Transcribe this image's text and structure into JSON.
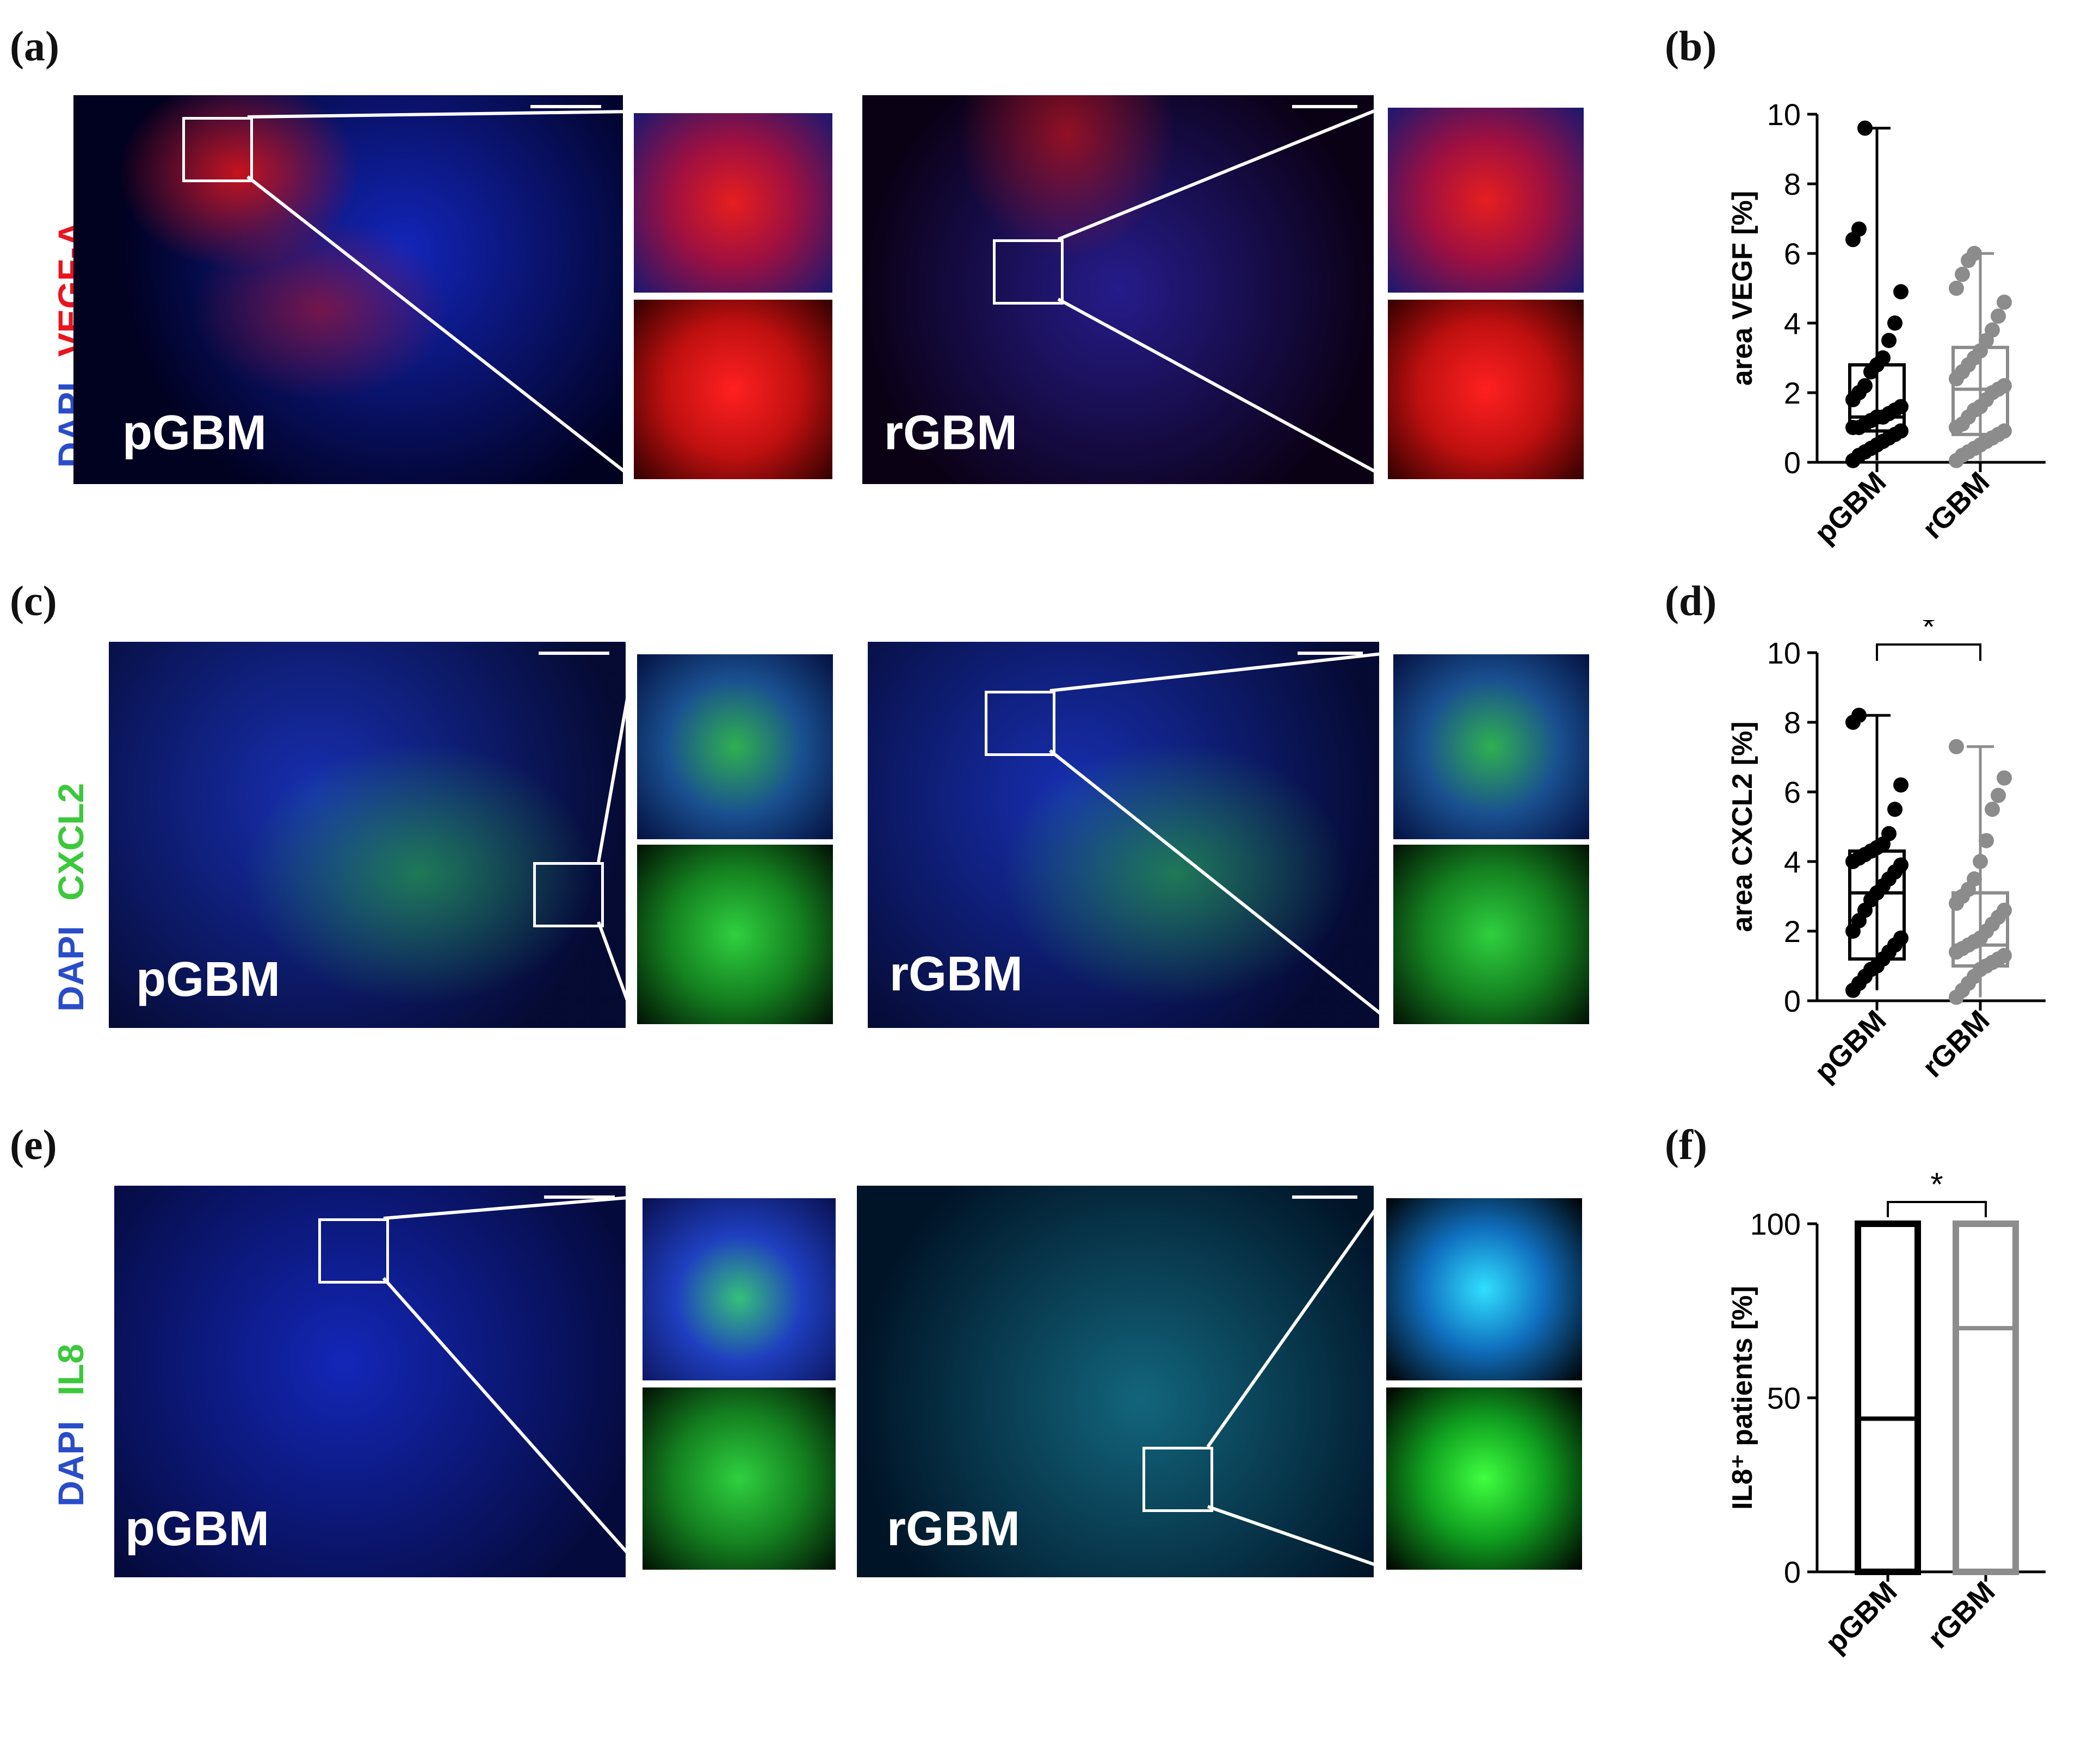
{
  "panels": {
    "a": {
      "letter": "(a)",
      "marker": "VEGF-A",
      "counterstain": "DAPI",
      "left_label": "pGBM",
      "right_label": "rGBM"
    },
    "b": {
      "letter": "(b)"
    },
    "c": {
      "letter": "(c)",
      "marker": "CXCL2",
      "counterstain": "DAPI",
      "left_label": "pGBM",
      "right_label": "rGBM"
    },
    "d": {
      "letter": "(d)"
    },
    "e": {
      "letter": "(e)",
      "marker": "IL8",
      "counterstain": "DAPI",
      "left_label": "pGBM",
      "right_label": "rGBM"
    },
    "f": {
      "letter": "(f)"
    }
  },
  "colors": {
    "vegf": "#e8141e",
    "dapi": "#2a4cc8",
    "green": "#3cc83c",
    "pgbm": "#000000",
    "rgbm": "#8c8c8c"
  },
  "chart_data": [
    {
      "type": "box",
      "panel": "b",
      "ylabel": "area VEGF [%]",
      "categories": [
        "pGBM",
        "rGBM"
      ],
      "yticks": [
        "0",
        "2",
        "4",
        "6",
        "8",
        "10"
      ],
      "ylim": [
        0,
        10
      ],
      "significance": "",
      "series": [
        {
          "name": "pGBM",
          "min": 0.05,
          "q1": 0.9,
          "median": 1.3,
          "q3": 2.8,
          "max": 9.6,
          "points": [
            0.05,
            0.2,
            0.3,
            0.4,
            0.5,
            0.6,
            0.7,
            0.8,
            0.9,
            1.0,
            1.0,
            1.1,
            1.2,
            1.3,
            1.3,
            1.4,
            1.5,
            1.6,
            1.8,
            2.0,
            2.2,
            2.6,
            2.8,
            3.0,
            3.5,
            4.0,
            4.9,
            6.4,
            6.7,
            9.6
          ]
        },
        {
          "name": "rGBM",
          "min": 0.05,
          "q1": 0.8,
          "median": 2.1,
          "q3": 3.3,
          "max": 6.0,
          "points": [
            0.05,
            0.2,
            0.3,
            0.4,
            0.5,
            0.6,
            0.7,
            0.8,
            0.9,
            1.0,
            1.1,
            1.3,
            1.5,
            1.6,
            1.8,
            2.0,
            2.1,
            2.2,
            2.4,
            2.6,
            2.8,
            3.0,
            3.2,
            3.5,
            3.8,
            4.2,
            4.6,
            5.0,
            5.4,
            5.8,
            6.0
          ]
        }
      ]
    },
    {
      "type": "box",
      "panel": "d",
      "ylabel": "area CXCL2 [%]",
      "categories": [
        "pGBM",
        "rGBM"
      ],
      "yticks": [
        "0",
        "2",
        "4",
        "6",
        "8",
        "10"
      ],
      "ylim": [
        0,
        10
      ],
      "significance": "*",
      "series": [
        {
          "name": "pGBM",
          "min": 0.3,
          "q1": 1.2,
          "median": 3.1,
          "q3": 4.3,
          "max": 8.2,
          "points": [
            0.3,
            0.5,
            0.7,
            0.9,
            1.0,
            1.2,
            1.4,
            1.6,
            1.8,
            2.0,
            2.3,
            2.6,
            2.9,
            3.1,
            3.3,
            3.5,
            3.7,
            3.9,
            4.0,
            4.1,
            4.2,
            4.3,
            4.4,
            4.5,
            4.8,
            5.5,
            6.2,
            8.0,
            8.2
          ]
        },
        {
          "name": "rGBM",
          "min": 0.1,
          "q1": 1.0,
          "median": 1.6,
          "q3": 3.1,
          "max": 7.3,
          "points": [
            0.1,
            0.3,
            0.5,
            0.7,
            0.9,
            1.0,
            1.1,
            1.2,
            1.3,
            1.4,
            1.5,
            1.6,
            1.7,
            1.8,
            2.0,
            2.2,
            2.4,
            2.6,
            2.8,
            3.0,
            3.2,
            3.5,
            4.0,
            4.6,
            5.5,
            5.9,
            6.4,
            7.3
          ]
        }
      ]
    },
    {
      "type": "bar",
      "panel": "f",
      "ylabel": "IL8⁺ patients [%]",
      "categories": [
        "pGBM",
        "rGBM"
      ],
      "yticks": [
        "0",
        "50",
        "100"
      ],
      "ylim": [
        0,
        100
      ],
      "significance": "*",
      "series": [
        {
          "name": "pGBM",
          "total": 100,
          "split": 44
        },
        {
          "name": "rGBM",
          "total": 100,
          "split": 70
        }
      ]
    }
  ]
}
